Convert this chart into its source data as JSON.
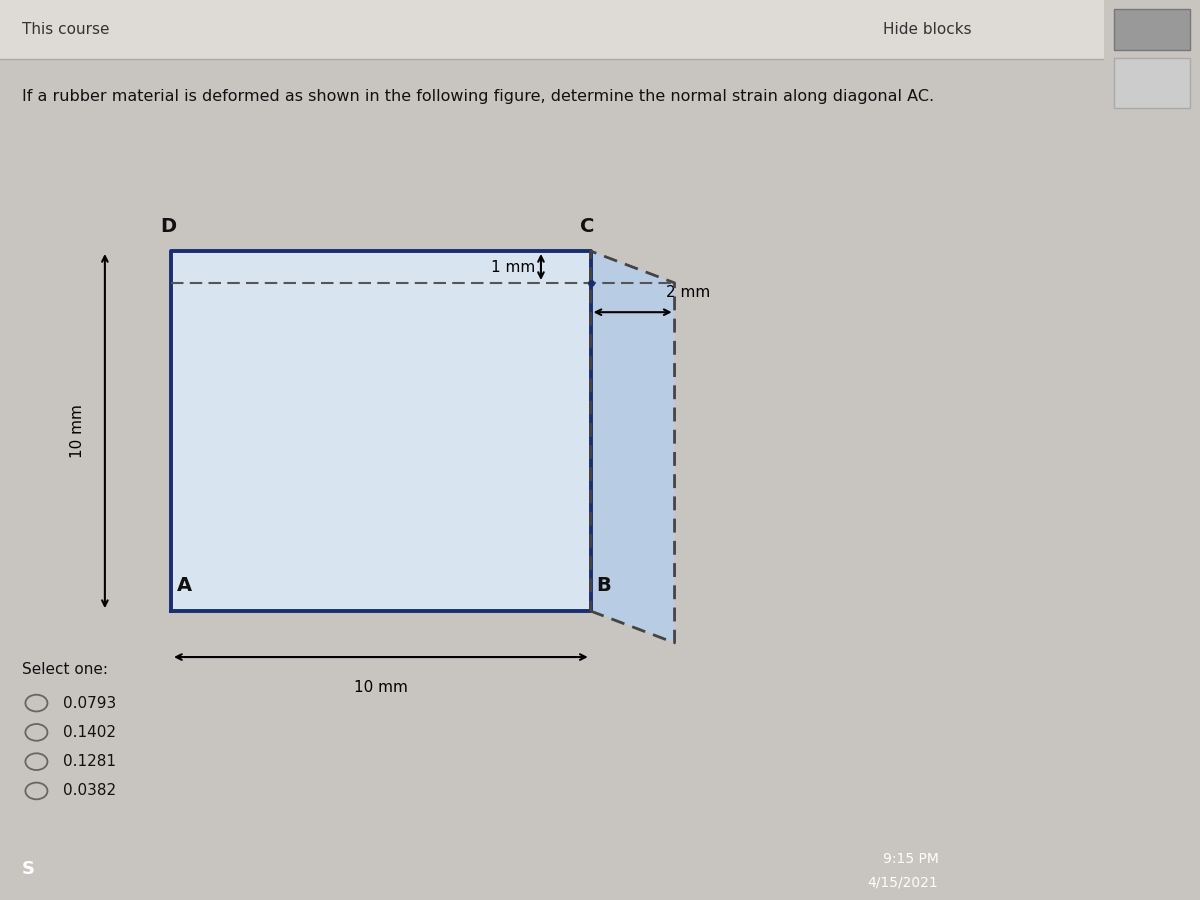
{
  "bg_color": "#c8c4c0",
  "page_bg": "#e8e4df",
  "title_text": "This course",
  "hide_blocks_text": "Hide blocks",
  "question_text": "If a rubber material is deformed as shown in the following figure, determine the normal strain along diagonal AC.",
  "label_D": "D",
  "label_C": "C",
  "label_A": "A",
  "label_B": "B",
  "dim_10mm_h": "10 mm",
  "dim_10mm_b": "10 mm",
  "dim_1mm": "1 mm",
  "dim_2mm": "2 mm",
  "select_one": "Select one:",
  "options": [
    "0.0793",
    "0.1402",
    "0.1281",
    "0.0382"
  ],
  "taskbar_color": "#1a6b9a",
  "taskbar_text_left": "S",
  "taskbar_time": "9:15 PM",
  "taskbar_date": "4/15/2021",
  "solid_rect_color": "#1a2e6e",
  "dashed_rect_color": "#444444",
  "A": [
    0.155,
    0.27
  ],
  "B_orig": [
    0.535,
    0.27
  ],
  "D": [
    0.155,
    0.7
  ],
  "C_orig": [
    0.535,
    0.7
  ],
  "scale": 0.038
}
